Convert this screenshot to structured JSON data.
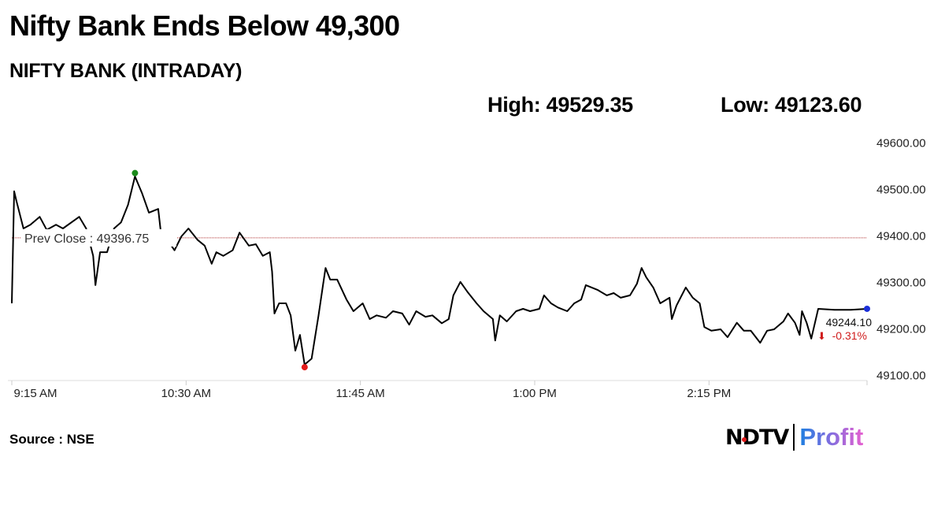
{
  "header": {
    "title": "Nifty Bank Ends Below 49,300",
    "subtitle": "NIFTY BANK (INTRADAY)",
    "high": "High: 49529.35",
    "low": "Low: 49123.60"
  },
  "footer": {
    "source": "Source : NSE",
    "logo_text": "NDTV | Profit",
    "logo_left": "NDTV",
    "logo_right": "Profit"
  },
  "chart_data": {
    "type": "line",
    "title": "NIFTY BANK (INTRADAY)",
    "xlabel": "",
    "ylabel": "",
    "x_unit": "minutes since 9:15 AM",
    "xlim": [
      0,
      368
    ],
    "ylim": [
      49100,
      49600
    ],
    "x_ticks": [
      {
        "m": 0,
        "label": "9:15 AM"
      },
      {
        "m": 75,
        "label": "10:30 AM"
      },
      {
        "m": 150,
        "label": "11:45 AM"
      },
      {
        "m": 225,
        "label": "1:00 PM"
      },
      {
        "m": 300,
        "label": "2:15 PM"
      }
    ],
    "y_ticks": [
      "49600.00",
      "49500.00",
      "49400.00",
      "49300.00",
      "49200.00",
      "49100.00"
    ],
    "y_tick_values": [
      49600,
      49500,
      49400,
      49300,
      49200,
      49100
    ],
    "prev_close": {
      "value": 49396.75,
      "label": "Prev Close : 49396.75"
    },
    "high": {
      "m": 53,
      "value": 49529.35
    },
    "low": {
      "m": 126,
      "value": 49123.6
    },
    "last": {
      "value": 49244.1,
      "label": "49244.10",
      "change": "-0.31%"
    },
    "colors": {
      "line": "#000000",
      "high": "#1a8a1a",
      "low": "#e41b1b",
      "last": "#1b2fd8",
      "prev_close": "#b03030",
      "change": "#d01c1c"
    },
    "series": [
      {
        "name": "NIFTY BANK",
        "points": [
          [
            0,
            49256
          ],
          [
            1,
            49497
          ],
          [
            2,
            49476
          ],
          [
            5,
            49417
          ],
          [
            8,
            49425
          ],
          [
            12,
            49442
          ],
          [
            15,
            49414
          ],
          [
            19,
            49425
          ],
          [
            22,
            49417
          ],
          [
            29,
            49442
          ],
          [
            32,
            49417
          ],
          [
            35,
            49358
          ],
          [
            36,
            49295
          ],
          [
            38,
            49366
          ],
          [
            41,
            49366
          ],
          [
            44,
            49417
          ],
          [
            47,
            49430
          ],
          [
            50,
            49468
          ],
          [
            53,
            49529
          ],
          [
            56,
            49493
          ],
          [
            59,
            49451
          ],
          [
            63,
            49459
          ],
          [
            64,
            49414
          ],
          [
            70,
            49370
          ],
          [
            73,
            49400
          ],
          [
            76,
            49417
          ],
          [
            80,
            49392
          ],
          [
            83,
            49380
          ],
          [
            86,
            49341
          ],
          [
            88,
            49366
          ],
          [
            91,
            49358
          ],
          [
            95,
            49370
          ],
          [
            98,
            49408
          ],
          [
            102,
            49380
          ],
          [
            105,
            49383
          ],
          [
            108,
            49358
          ],
          [
            111,
            49366
          ],
          [
            112,
            49324
          ],
          [
            113,
            49234
          ],
          [
            115,
            49256
          ],
          [
            118,
            49256
          ],
          [
            120,
            49230
          ],
          [
            122,
            49154
          ],
          [
            124,
            49188
          ],
          [
            126,
            49124
          ],
          [
            129,
            49137
          ],
          [
            132,
            49230
          ],
          [
            134,
            49298
          ],
          [
            135,
            49332
          ],
          [
            137,
            49307
          ],
          [
            140,
            49307
          ],
          [
            144,
            49264
          ],
          [
            147,
            49239
          ],
          [
            151,
            49256
          ],
          [
            154,
            49222
          ],
          [
            157,
            49230
          ],
          [
            161,
            49225
          ],
          [
            164,
            49239
          ],
          [
            168,
            49234
          ],
          [
            171,
            49210
          ],
          [
            174,
            49239
          ],
          [
            178,
            49227
          ],
          [
            181,
            49230
          ],
          [
            185,
            49213
          ],
          [
            188,
            49222
          ],
          [
            190,
            49273
          ],
          [
            193,
            49302
          ],
          [
            196,
            49281
          ],
          [
            200,
            49256
          ],
          [
            203,
            49239
          ],
          [
            207,
            49222
          ],
          [
            208,
            49176
          ],
          [
            210,
            49230
          ],
          [
            213,
            49217
          ],
          [
            217,
            49239
          ],
          [
            220,
            49244
          ],
          [
            223,
            49239
          ],
          [
            227,
            49244
          ],
          [
            229,
            49273
          ],
          [
            232,
            49256
          ],
          [
            235,
            49247
          ],
          [
            239,
            49239
          ],
          [
            242,
            49256
          ],
          [
            245,
            49264
          ],
          [
            247,
            49295
          ],
          [
            252,
            49285
          ],
          [
            256,
            49273
          ],
          [
            259,
            49278
          ],
          [
            262,
            49268
          ],
          [
            266,
            49273
          ],
          [
            269,
            49298
          ],
          [
            271,
            49332
          ],
          [
            273,
            49312
          ],
          [
            276,
            49290
          ],
          [
            279,
            49256
          ],
          [
            283,
            49268
          ],
          [
            284,
            49222
          ],
          [
            286,
            49251
          ],
          [
            290,
            49290
          ],
          [
            293,
            49268
          ],
          [
            296,
            49256
          ],
          [
            298,
            49205
          ],
          [
            301,
            49197
          ],
          [
            305,
            49200
          ],
          [
            308,
            49183
          ],
          [
            312,
            49214
          ],
          [
            315,
            49197
          ],
          [
            318,
            49197
          ],
          [
            322,
            49171
          ],
          [
            325,
            49197
          ],
          [
            328,
            49200
          ],
          [
            332,
            49217
          ],
          [
            334,
            49234
          ],
          [
            337,
            49214
          ],
          [
            339,
            49188
          ],
          [
            340,
            49239
          ],
          [
            342,
            49214
          ],
          [
            344,
            49180
          ],
          [
            347,
            49244
          ],
          [
            354,
            49242
          ],
          [
            361,
            49242
          ],
          [
            368,
            49244.1
          ]
        ]
      }
    ]
  }
}
